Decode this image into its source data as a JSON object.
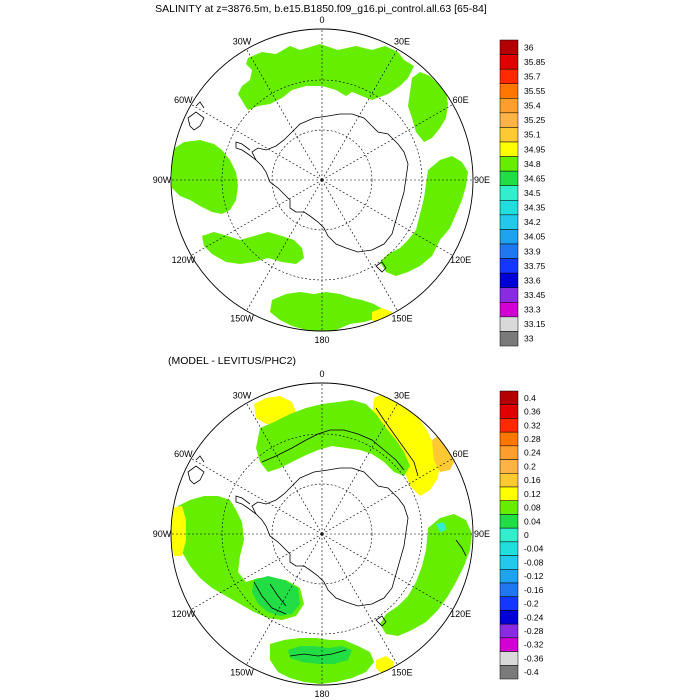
{
  "panels": [
    {
      "title": "SALINITY at z=3876.5m, b.e15.B1850.f09_g16.pi_control.all.63 [65-84]",
      "colorbar": {
        "labels": [
          "36",
          "35.85",
          "35.7",
          "35.55",
          "35.4",
          "35.25",
          "35.1",
          "34.95",
          "34.8",
          "34.65",
          "34.5",
          "34.35",
          "34.2",
          "34.05",
          "33.9",
          "33.75",
          "33.6",
          "33.45",
          "33.3",
          "33.15",
          "33"
        ],
        "colors": [
          "#b30000",
          "#e00000",
          "#ff2a00",
          "#ff7700",
          "#ff9d2e",
          "#ffb347",
          "#ffc933",
          "#ffff00",
          "#66ee00",
          "#22dd44",
          "#33eecc",
          "#22dddd",
          "#22c8ee",
          "#1fa3f0",
          "#1f78f0",
          "#1437ff",
          "#0000d4",
          "#8a2be2",
          "#d200d2",
          "#d9d9d9",
          "#7a7a7a"
        ]
      }
    },
    {
      "title": "(MODEL - LEVITUS/PHC2)",
      "colorbar": {
        "labels": [
          "0.4",
          "0.36",
          "0.32",
          "0.28",
          "0.24",
          "0.2",
          "0.16",
          "0.12",
          "0.08",
          "0.04",
          "0",
          "-0.04",
          "-0.08",
          "-0.12",
          "-0.16",
          "-0.2",
          "-0.24",
          "-0.28",
          "-0.32",
          "-0.36",
          "-0.4"
        ],
        "colors": [
          "#b30000",
          "#e00000",
          "#ff2a00",
          "#ff7700",
          "#ff9d2e",
          "#ffb347",
          "#ffc933",
          "#ffff00",
          "#66ee00",
          "#22dd44",
          "#33eecc",
          "#22dddd",
          "#22c8ee",
          "#1fa3f0",
          "#1f78f0",
          "#1437ff",
          "#0000d4",
          "#8a2be2",
          "#d200d2",
          "#d9d9d9",
          "#7a7a7a"
        ]
      }
    }
  ],
  "longitude_labels": [
    "0",
    "30E",
    "60E",
    "90E",
    "120E",
    "150E",
    "180",
    "150W",
    "120W",
    "90W",
    "60W",
    "30W"
  ],
  "colors": {
    "field_main": "#66ee00",
    "field_yellow": "#ffff00",
    "field_orange": "#ffc933",
    "field_teal": "#22dd44",
    "land_outline": "#000000"
  }
}
